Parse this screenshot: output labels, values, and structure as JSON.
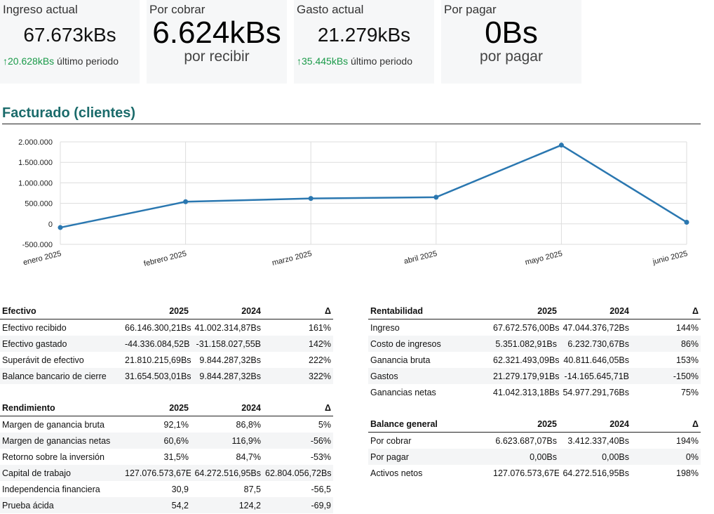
{
  "kpis": {
    "income": {
      "label": "Ingreso actual",
      "value": "67.673kBs",
      "change": "20.628kBs",
      "note": " último periodo"
    },
    "receivable": {
      "label": "Por cobrar",
      "value": "6.624kBs",
      "sub": "por recibir"
    },
    "expense": {
      "label": "Gasto actual",
      "value": "21.279kBs",
      "change": "35.445kBs",
      "note": " último periodo"
    },
    "payable": {
      "label": "Por pagar",
      "value": "0Bs",
      "sub": "por pagar"
    }
  },
  "section": {
    "title": "Facturado (clientes)"
  },
  "chart_data": {
    "type": "line",
    "categories": [
      "enero 2025",
      "febrero 2025",
      "marzo 2025",
      "abril 2025",
      "mayo 2025",
      "junio 2025"
    ],
    "series": [
      {
        "values": [
          -90000,
          540000,
          620000,
          650000,
          1920000,
          40000
        ]
      }
    ],
    "yticks": [
      2000000,
      1500000,
      1000000,
      500000,
      0,
      -500000
    ],
    "ytick_labels": [
      "2.000.000",
      "1.500.000",
      "1.000.000",
      "500.000",
      "0",
      "-500.000"
    ],
    "ylim": [
      -500000,
      2000000
    ],
    "grid": true,
    "line_color": "#2a77b0"
  },
  "tables": {
    "efectivo": {
      "headers": [
        "Efectivo",
        "2025",
        "2024",
        "Δ"
      ],
      "rows": [
        [
          "Efectivo recibido",
          "66.146.300,21Bs",
          "41.002.314,87Bs",
          "161%"
        ],
        [
          "Efectivo gastado",
          "-44.336.084,52B",
          "-31.158.027,55B",
          "142%"
        ],
        [
          "Superávit de efectivo",
          "21.810.215,69Bs",
          "9.844.287,32Bs",
          "222%"
        ],
        [
          "Balance bancario de cierre",
          "31.654.503,01Bs",
          "9.844.287,32Bs",
          "322%"
        ]
      ]
    },
    "rendimiento": {
      "headers": [
        "Rendimiento",
        "2025",
        "2024",
        "Δ"
      ],
      "rows": [
        [
          "Margen de ganancia bruta",
          "92,1%",
          "86,8%",
          "5%"
        ],
        [
          "Margen de ganancias netas",
          "60,6%",
          "116,9%",
          "-56%"
        ],
        [
          "Retorno sobre la inversión",
          "31,5%",
          "84,7%",
          "-53%"
        ],
        [
          "Capital de trabajo",
          "127.076.573,67E",
          "64.272.516,95Bs",
          "62.804.056,72Bs"
        ],
        [
          "Independencia financiera",
          "30,9",
          "87,5",
          "-56,5"
        ],
        [
          "Prueba ácida",
          "54,2",
          "124,2",
          "-69,9"
        ]
      ]
    },
    "rentabilidad": {
      "headers": [
        "Rentabilidad",
        "2025",
        "2024",
        "Δ"
      ],
      "rows": [
        [
          "Ingreso",
          "67.672.576,00Bs",
          "47.044.376,72Bs",
          "144%"
        ],
        [
          "Costo de ingresos",
          "5.351.082,91Bs",
          "6.232.730,67Bs",
          "86%"
        ],
        [
          "Ganancia bruta",
          "62.321.493,09Bs",
          "40.811.646,05Bs",
          "153%"
        ],
        [
          "Gastos",
          "21.279.179,91Bs",
          "-14.165.645,71B",
          "-150%"
        ],
        [
          "Ganancias netas",
          "41.042.313,18Bs",
          "54.977.291,76Bs",
          "75%"
        ]
      ]
    },
    "balance": {
      "headers": [
        "Balance general",
        "2025",
        "2024",
        "Δ"
      ],
      "rows": [
        [
          "Por cobrar",
          "6.623.687,07Bs",
          "3.412.337,40Bs",
          "194%"
        ],
        [
          "Por pagar",
          "0,00Bs",
          "0,00Bs",
          "0%"
        ],
        [
          "Activos netos",
          "127.076.573,67E",
          "64.272.516,95Bs",
          "198%"
        ]
      ]
    }
  }
}
